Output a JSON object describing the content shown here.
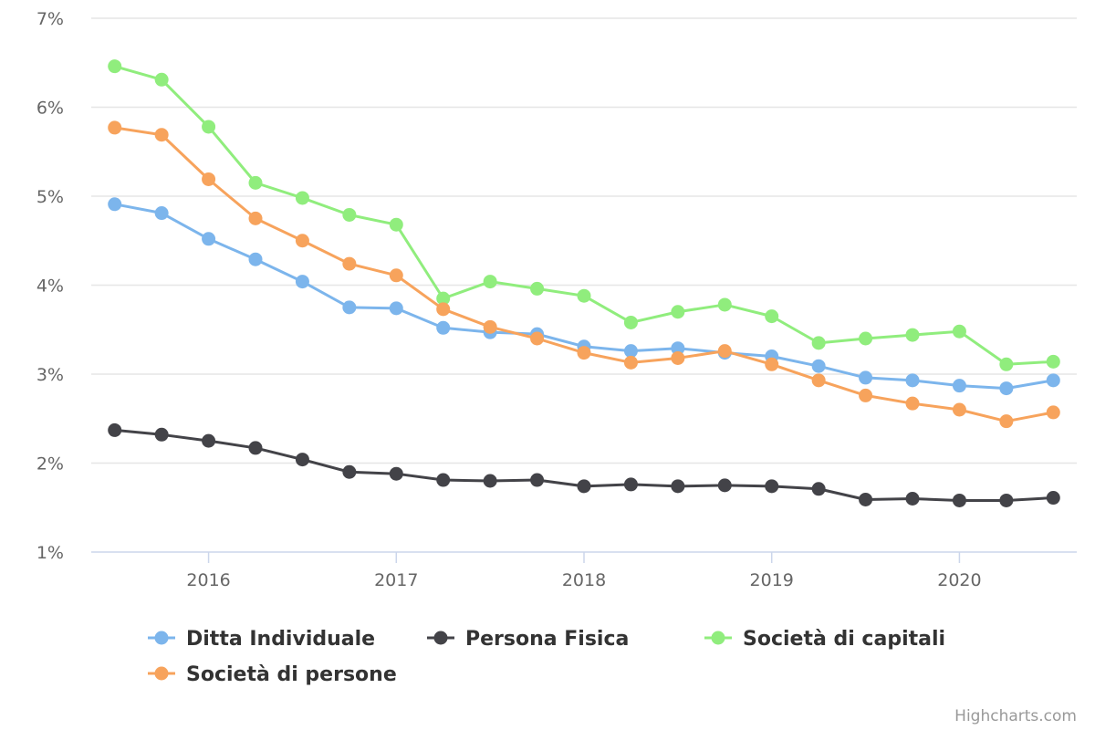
{
  "chart_data": {
    "type": "line",
    "title": "",
    "xlabel": "",
    "ylabel": "",
    "ylim": [
      1,
      7
    ],
    "y_ticks": [
      "1%",
      "2%",
      "3%",
      "4%",
      "5%",
      "6%",
      "7%"
    ],
    "x_ticks": [
      "2016",
      "2017",
      "2018",
      "2019",
      "2020"
    ],
    "x_range": [
      2015.375,
      2020.625
    ],
    "grid": "horizontal",
    "legend_placement": "bottom",
    "x": [
      2015.5,
      2015.75,
      2016.0,
      2016.25,
      2016.5,
      2016.75,
      2017.0,
      2017.25,
      2017.5,
      2017.75,
      2018.0,
      2018.25,
      2018.5,
      2018.75,
      2019.0,
      2019.25,
      2019.5,
      2019.75,
      2020.0,
      2020.25,
      2020.5
    ],
    "series": [
      {
        "name": "Ditta Individuale",
        "color": "#7cb5ec",
        "values": [
          4.91,
          4.81,
          4.52,
          4.29,
          4.04,
          3.75,
          3.74,
          3.52,
          3.47,
          3.45,
          3.31,
          3.26,
          3.29,
          3.24,
          3.2,
          3.09,
          2.96,
          2.93,
          2.87,
          2.84,
          2.93
        ]
      },
      {
        "name": "Persona Fisica",
        "color": "#434348",
        "values": [
          2.37,
          2.32,
          2.25,
          2.17,
          2.04,
          1.9,
          1.88,
          1.81,
          1.8,
          1.81,
          1.74,
          1.76,
          1.74,
          1.75,
          1.74,
          1.71,
          1.59,
          1.6,
          1.58,
          1.58,
          1.61
        ]
      },
      {
        "name": "Società di capitali",
        "color": "#90ed7d",
        "values": [
          6.46,
          6.31,
          5.78,
          5.15,
          4.98,
          4.79,
          4.68,
          3.85,
          4.04,
          3.96,
          3.88,
          3.58,
          3.7,
          3.78,
          3.65,
          3.35,
          3.4,
          3.44,
          3.48,
          3.11,
          3.14
        ]
      },
      {
        "name": "Società di persone",
        "color": "#f7a35c",
        "values": [
          5.77,
          5.69,
          5.19,
          4.75,
          4.5,
          4.24,
          4.11,
          3.73,
          3.53,
          3.4,
          3.24,
          3.13,
          3.18,
          3.26,
          3.11,
          2.93,
          2.76,
          2.67,
          2.6,
          2.47,
          2.57
        ]
      }
    ]
  },
  "credits": "Highcharts.com"
}
